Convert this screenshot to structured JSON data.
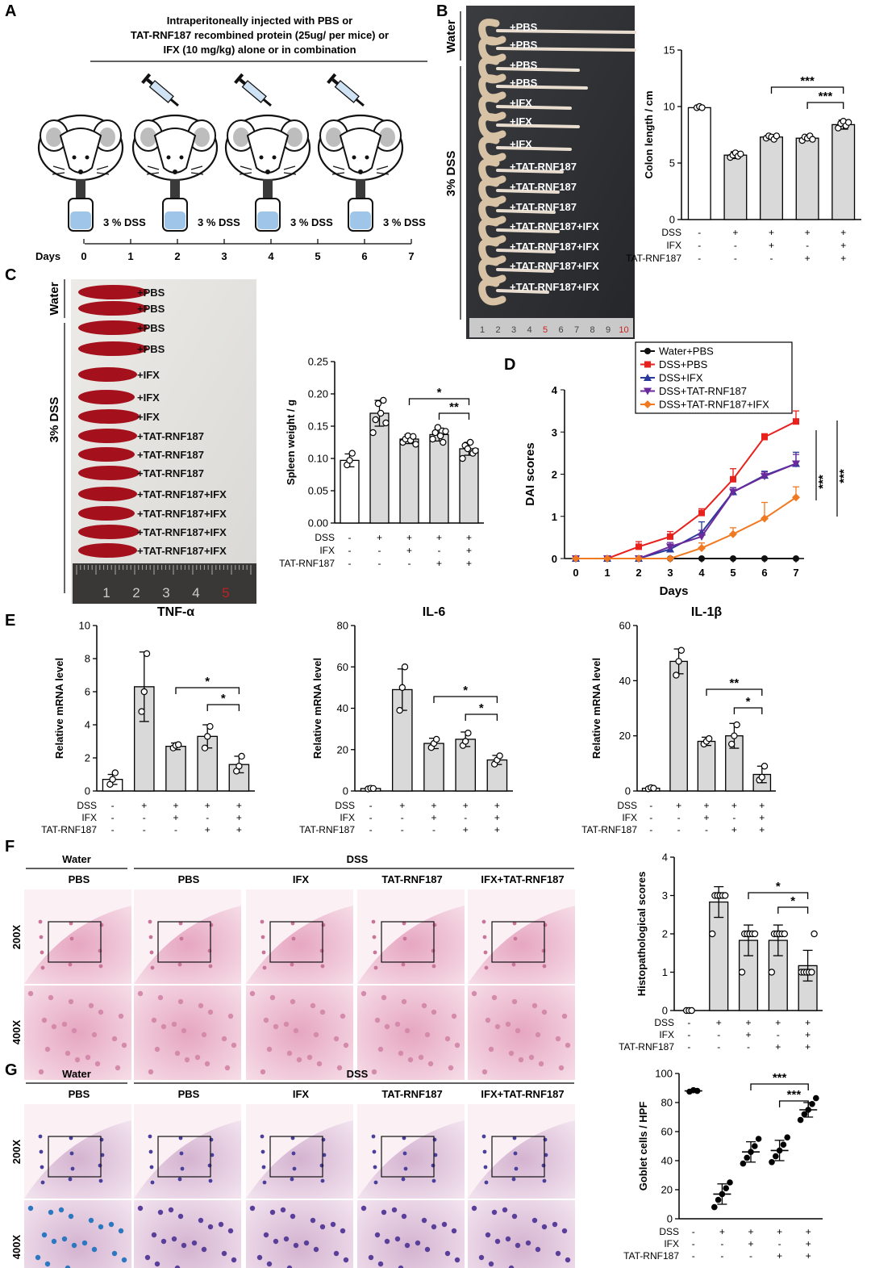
{
  "panels": {
    "A": {
      "letter": "A",
      "header_lines": [
        "Intraperitoneally injected with PBS or",
        "TAT-RNF187 recombined protein (25ug/ per mice) or",
        "IFX (10 mg/kg) alone or in combination"
      ],
      "dss_label": "3 % DSS",
      "days_label": "Days",
      "days": [
        "0",
        "1",
        "2",
        "3",
        "4",
        "5",
        "6",
        "7"
      ]
    },
    "B": {
      "letter": "B",
      "photo_group_water": "Water",
      "photo_group_dss": "3% DSS",
      "colon_labels": [
        "+PBS",
        "+PBS",
        "+PBS",
        "+PBS",
        "+IFX",
        "+IFX",
        "+IFX",
        "+TAT-RNF187",
        "+TAT-RNF187",
        "+TAT-RNF187",
        "+TAT-RNF187+IFX",
        "+TAT-RNF187+IFX",
        "+TAT-RNF187+IFX",
        "+TAT-RNF187+IFX"
      ],
      "ruler_ticks": [
        "1",
        "2",
        "3",
        "4",
        "5",
        "6",
        "7",
        "8",
        "9",
        "10"
      ]
    },
    "C": {
      "letter": "C",
      "photo_group_water": "Water",
      "photo_group_dss": "3% DSS",
      "spleen_labels": [
        "+PBS",
        "+PBS",
        "+PBS",
        "+PBS",
        "+IFX",
        "+IFX",
        "+IFX",
        "+TAT-RNF187",
        "+TAT-RNF187",
        "+TAT-RNF187",
        "+TAT-RNF187+IFX",
        "+TAT-RNF187+IFX",
        "+TAT-RNF187+IFX",
        "+TAT-RNF187+IFX"
      ],
      "ruler_ticks": [
        "1",
        "2",
        "3",
        "4",
        "5"
      ]
    },
    "D": {
      "letter": "D"
    },
    "E": {
      "letter": "E"
    },
    "F": {
      "letter": "F",
      "group_water": "Water",
      "group_dss": "DSS",
      "columns": [
        "PBS",
        "PBS",
        "IFX",
        "TAT-RNF187",
        "IFX+TAT-RNF187"
      ],
      "rows": [
        "200X",
        "400X"
      ]
    },
    "G": {
      "letter": "G",
      "group_water": "Water",
      "group_dss": "DSS",
      "columns": [
        "PBS",
        "PBS",
        "IFX",
        "TAT-RNF187",
        "IFX+TAT-RNF187"
      ],
      "rows": [
        "200X",
        "400X"
      ]
    }
  },
  "treatment_table": {
    "row_labels": [
      "DSS",
      "IFX",
      "TAT-RNF187"
    ],
    "DSS": [
      "-",
      "+",
      "+",
      "+",
      "+"
    ],
    "IFX": [
      "-",
      "-",
      "+",
      "-",
      "+"
    ],
    "TAT": [
      "-",
      "-",
      "-",
      "+",
      "+"
    ]
  },
  "colors": {
    "bar_fill": "#d9d9d9",
    "water_bar": "#ffffff",
    "red": "#e8211d",
    "blue": "#2a3a9c",
    "purple": "#6a2a9c",
    "orange": "#f07a22",
    "black": "#111111",
    "tissue": "#e9b3c8"
  },
  "chart_data": [
    {
      "id": "colon",
      "type": "bar",
      "ylabel": "Colon length / cm",
      "ylim": [
        0,
        15
      ],
      "yticks": [
        "0",
        "5",
        "10",
        "15"
      ],
      "values": [
        9.9,
        5.7,
        7.3,
        7.2,
        8.4
      ],
      "errors": [
        0.1,
        0.3,
        0.2,
        0.2,
        0.4
      ],
      "points": [
        [
          9.9,
          10.0,
          9.9
        ],
        [
          5.5,
          5.7,
          5.9,
          5.6,
          5.8
        ],
        [
          7.2,
          7.4,
          7.3,
          7.1,
          7.4
        ],
        [
          7.0,
          7.3,
          7.2,
          7.4,
          7.1
        ],
        [
          8.1,
          8.5,
          8.7,
          8.3,
          8.6
        ]
      ],
      "significance": [
        {
          "from": 2,
          "to": 4,
          "label": "***"
        },
        {
          "from": 3,
          "to": 4,
          "label": "***"
        }
      ]
    },
    {
      "id": "spleen",
      "type": "bar",
      "ylabel": "Spleen weight / g",
      "ylim": [
        0,
        0.25
      ],
      "yticks": [
        "0.00",
        "0.05",
        "0.10",
        "0.15",
        "0.20",
        "0.25"
      ],
      "values": [
        0.097,
        0.17,
        0.13,
        0.137,
        0.115
      ],
      "errors": [
        0.01,
        0.02,
        0.007,
        0.01,
        0.01
      ],
      "points": [
        [
          0.09,
          0.097,
          0.108
        ],
        [
          0.14,
          0.16,
          0.185,
          0.17,
          0.19,
          0.155
        ],
        [
          0.125,
          0.13,
          0.135,
          0.128,
          0.134,
          0.122
        ],
        [
          0.13,
          0.14,
          0.148,
          0.135,
          0.125,
          0.142
        ],
        [
          0.1,
          0.12,
          0.115,
          0.125,
          0.108,
          0.112
        ]
      ],
      "significance": [
        {
          "from": 2,
          "to": 4,
          "label": "*"
        },
        {
          "from": 3,
          "to": 4,
          "label": "**"
        }
      ]
    },
    {
      "id": "dai",
      "type": "line",
      "xlabel": "Days",
      "ylabel": "DAI scores",
      "x": [
        0,
        1,
        2,
        3,
        4,
        5,
        6,
        7
      ],
      "ylim": [
        0,
        4
      ],
      "yticks": [
        "0",
        "1",
        "2",
        "3",
        "4"
      ],
      "series": [
        {
          "name": "Water+PBS",
          "values": [
            0,
            0,
            0,
            0,
            0,
            0,
            0,
            0
          ],
          "errors": [
            0,
            0,
            0,
            0,
            0,
            0,
            0,
            0
          ],
          "marker": "circle",
          "color": "#111111"
        },
        {
          "name": "DSS+PBS",
          "values": [
            0,
            0,
            0.28,
            0.52,
            1.08,
            1.88,
            2.88,
            3.25
          ],
          "errors": [
            0,
            0,
            0.12,
            0.12,
            0.1,
            0.25,
            0.08,
            0.25
          ],
          "marker": "square",
          "color": "#e8211d"
        },
        {
          "name": "DSS+IFX",
          "values": [
            0,
            0,
            0,
            0.22,
            0.62,
            1.58,
            1.97,
            2.25
          ],
          "errors": [
            0,
            0,
            0,
            0.1,
            0.25,
            0.1,
            0.1,
            0.27
          ],
          "marker": "triangle",
          "color": "#2a3a9c"
        },
        {
          "name": "DSS+TAT-RNF187",
          "values": [
            0,
            0,
            0,
            0.28,
            0.52,
            1.58,
            1.95,
            2.25
          ],
          "errors": [
            0,
            0,
            0,
            0.1,
            0.15,
            0.1,
            0.1,
            0.22
          ],
          "marker": "triangle-down",
          "color": "#6a2a9c"
        },
        {
          "name": "DSS+TAT-RNF187+IFX",
          "values": [
            0,
            0,
            0,
            0,
            0.25,
            0.58,
            0.95,
            1.45
          ],
          "errors": [
            0,
            0,
            0,
            0,
            0.12,
            0.15,
            0.38,
            0.25
          ],
          "marker": "diamond",
          "color": "#f07a22"
        }
      ],
      "significance": [
        "***",
        "***"
      ]
    },
    {
      "id": "tnf",
      "type": "bar",
      "title": "TNF-α",
      "ylabel": "Relative mRNA level",
      "ylim": [
        0,
        10
      ],
      "yticks": [
        "0",
        "2",
        "4",
        "6",
        "8",
        "10"
      ],
      "values": [
        0.7,
        6.3,
        2.7,
        3.3,
        1.6
      ],
      "errors": [
        0.3,
        2.1,
        0.2,
        0.7,
        0.5
      ],
      "points": [
        [
          0.4,
          0.7,
          1.1
        ],
        [
          4.8,
          6.0,
          8.3
        ],
        [
          2.6,
          2.75,
          2.8
        ],
        [
          2.6,
          3.3,
          3.9
        ],
        [
          1.2,
          1.5,
          2.1
        ]
      ],
      "significance": [
        {
          "from": 2,
          "to": 4,
          "label": "*"
        },
        {
          "from": 3,
          "to": 4,
          "label": "*"
        }
      ]
    },
    {
      "id": "il6",
      "type": "bar",
      "title": "IL-6",
      "ylabel": "Relative mRNA level",
      "ylim": [
        0,
        80
      ],
      "yticks": [
        "0",
        "20",
        "40",
        "60",
        "80"
      ],
      "values": [
        1.2,
        49,
        23,
        25,
        15
      ],
      "errors": [
        0.3,
        10,
        2.5,
        3.5,
        2.2
      ],
      "points": [
        [
          1,
          1.3,
          1.2
        ],
        [
          39,
          50,
          60
        ],
        [
          21,
          23,
          25
        ],
        [
          22,
          24,
          28
        ],
        [
          13,
          15,
          17
        ]
      ],
      "significance": [
        {
          "from": 2,
          "to": 4,
          "label": "*"
        },
        {
          "from": 3,
          "to": 4,
          "label": "*"
        }
      ]
    },
    {
      "id": "il1b",
      "type": "bar",
      "title": "IL-1β",
      "ylabel": "Relative mRNA level",
      "ylim": [
        0,
        60
      ],
      "yticks": [
        "0",
        "20",
        "40",
        "60"
      ],
      "values": [
        1,
        47,
        18,
        20,
        6
      ],
      "errors": [
        0.3,
        4.5,
        1.5,
        4.5,
        3
      ],
      "points": [
        [
          0.8,
          1.2,
          1
        ],
        [
          42,
          47,
          51
        ],
        [
          17,
          18,
          19
        ],
        [
          17,
          20,
          24
        ],
        [
          4,
          5,
          9
        ]
      ],
      "significance": [
        {
          "from": 2,
          "to": 4,
          "label": "**"
        },
        {
          "from": 3,
          "to": 4,
          "label": "*"
        }
      ]
    },
    {
      "id": "histo",
      "type": "bar",
      "ylabel": "Histopathological scores",
      "ylim": [
        0,
        4
      ],
      "yticks": [
        "0",
        "1",
        "2",
        "3",
        "4"
      ],
      "values": [
        0,
        2.83,
        1.83,
        1.83,
        1.17
      ],
      "errors": [
        0,
        0.4,
        0.4,
        0.4,
        0.4
      ],
      "points": [
        [
          0,
          0,
          0
        ],
        [
          2,
          3,
          3,
          3,
          3,
          3
        ],
        [
          1,
          2,
          2,
          2,
          2,
          2
        ],
        [
          1,
          2,
          2,
          2,
          2,
          2
        ],
        [
          1,
          1,
          1,
          1,
          1,
          2
        ]
      ],
      "significance": [
        {
          "from": 2,
          "to": 4,
          "label": "*"
        },
        {
          "from": 3,
          "to": 4,
          "label": "*"
        }
      ]
    },
    {
      "id": "goblet",
      "type": "scatter",
      "ylabel": "Goblet cells / HPF",
      "ylim": [
        0,
        100
      ],
      "yticks": [
        "0",
        "20",
        "40",
        "60",
        "80",
        "100"
      ],
      "values": [
        88,
        17,
        46,
        47,
        75
      ],
      "errors": [
        1,
        7,
        7,
        7,
        5
      ],
      "points": [
        [
          87.5,
          88.5,
          88
        ],
        [
          8,
          13,
          17,
          21,
          25
        ],
        [
          38,
          42,
          46,
          50,
          55
        ],
        [
          39,
          43,
          47,
          51,
          56
        ],
        [
          68,
          72,
          75,
          79,
          83
        ]
      ],
      "significance": [
        {
          "from": 2,
          "to": 4,
          "label": "***"
        },
        {
          "from": 3,
          "to": 4,
          "label": "***"
        }
      ]
    }
  ]
}
